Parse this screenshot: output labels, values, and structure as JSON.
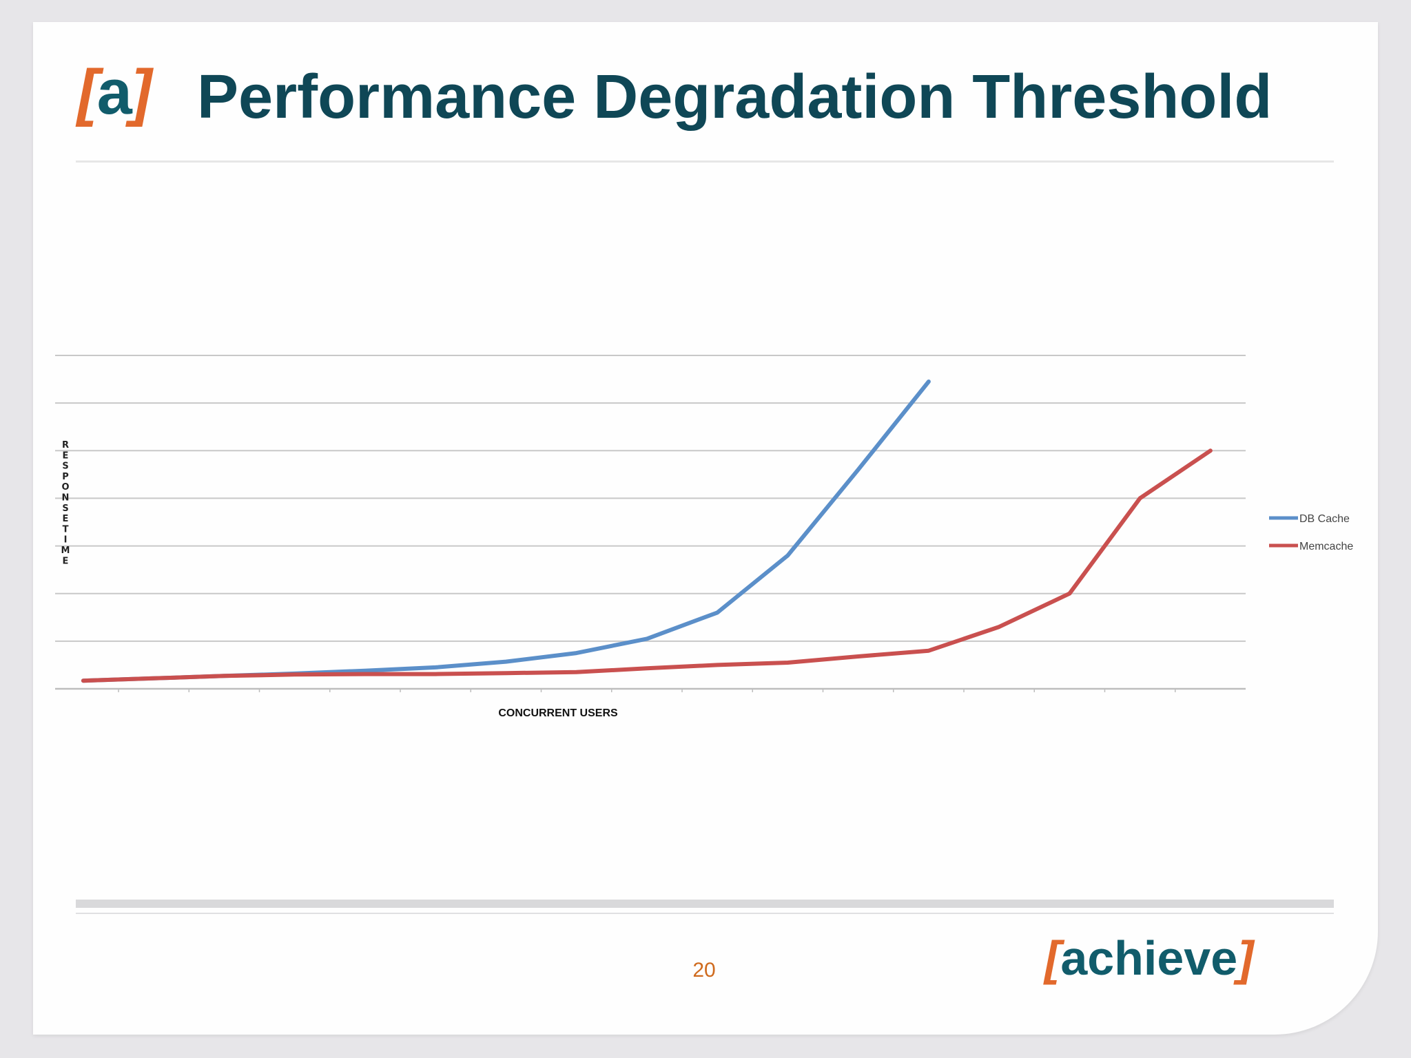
{
  "slide": {
    "title": "Performance Degradation Threshold",
    "logo": {
      "bracket_left": "[",
      "letter": "a",
      "bracket_right": "]"
    },
    "page_number": "20",
    "footer_logo": {
      "bracket_left": "[",
      "word": "achieve",
      "bracket_right": "]"
    },
    "colors": {
      "title": "#0f4756",
      "brand_teal": "#115c6b",
      "brand_orange": "#e2692c",
      "page_number": "#cf6a1d"
    }
  },
  "chart_data": {
    "type": "line",
    "title": "",
    "xlabel": "CONCURRENT USERS",
    "ylabel": "RESPONSE TIME",
    "x": [
      1,
      2,
      3,
      4,
      5,
      6,
      7,
      8,
      9,
      10,
      11,
      12,
      13,
      14,
      15,
      16,
      17
    ],
    "xlim": [
      0.6,
      17.5
    ],
    "ylim": [
      0,
      7
    ],
    "grid": true,
    "legend_position": "right",
    "series": [
      {
        "name": "DB Cache",
        "color": "#5b8fc9",
        "values": [
          0.17,
          0.22,
          0.27,
          0.32,
          0.38,
          0.45,
          0.57,
          0.75,
          1.05,
          1.6,
          2.8,
          4.6,
          6.45,
          null,
          null,
          null,
          null
        ]
      },
      {
        "name": "Memcache",
        "color": "#c9504f",
        "values": [
          0.17,
          0.22,
          0.27,
          0.3,
          0.31,
          0.31,
          0.33,
          0.35,
          0.43,
          0.5,
          0.55,
          0.68,
          0.8,
          1.3,
          2.0,
          4.0,
          5.0
        ]
      }
    ]
  }
}
